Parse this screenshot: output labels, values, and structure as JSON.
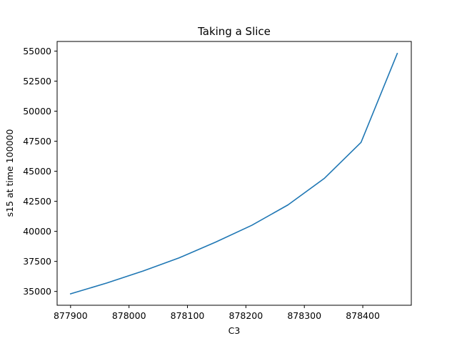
{
  "chart_data": {
    "type": "line",
    "title": "Taking a Slice",
    "xlabel": "C3",
    "ylabel": "s15 at time 100000",
    "xlim": [
      877877,
      878483
    ],
    "ylim": [
      33850,
      55800
    ],
    "xticks": [
      877900,
      878000,
      878100,
      878200,
      878300,
      878400
    ],
    "yticks": [
      35000,
      37500,
      40000,
      42500,
      45000,
      47500,
      50000,
      52500,
      55000
    ],
    "grid": false,
    "series": [
      {
        "color": "#1f77b4",
        "x": [
          877900,
          877962,
          878024,
          878086,
          878148,
          878210,
          878272,
          878334,
          878397,
          878459
        ],
        "y": [
          34800,
          35700,
          36700,
          37800,
          39100,
          40500,
          42200,
          44400,
          47400,
          54800
        ]
      }
    ]
  }
}
